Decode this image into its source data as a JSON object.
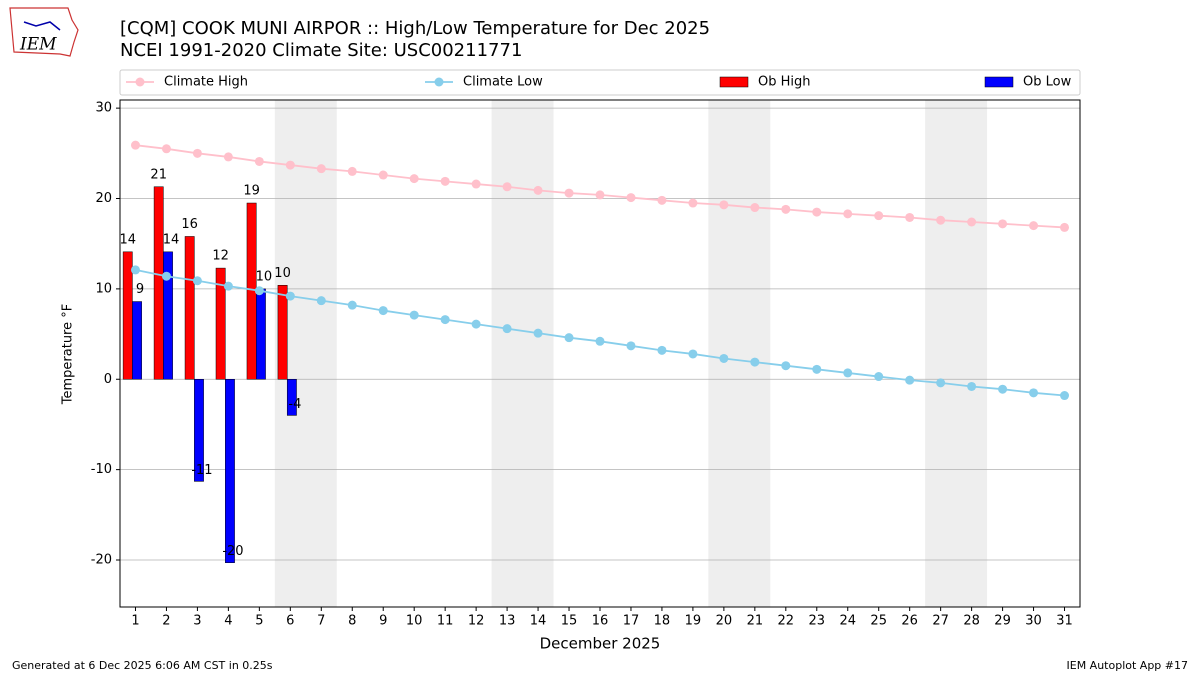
{
  "chart_data": {
    "type": "bar-line",
    "title": "[CQM] COOK MUNI AIRPOR :: High/Low Temperature for Dec 2025",
    "subtitle": "NCEI 1991-2020 Climate Site: USC00211771",
    "logo": "IEM",
    "xlabel": "December 2025",
    "ylabel": "Temperature °F",
    "x": [
      1,
      2,
      3,
      4,
      5,
      6,
      7,
      8,
      9,
      10,
      11,
      12,
      13,
      14,
      15,
      16,
      17,
      18,
      19,
      20,
      21,
      22,
      23,
      24,
      25,
      26,
      27,
      28,
      29,
      30,
      31
    ],
    "xlim": [
      0.5,
      31.5
    ],
    "xticks": [
      1,
      2,
      3,
      4,
      5,
      6,
      7,
      8,
      9,
      10,
      11,
      12,
      13,
      14,
      15,
      16,
      17,
      18,
      19,
      20,
      21,
      22,
      23,
      24,
      25,
      26,
      27,
      28,
      29,
      30,
      31
    ],
    "ylim": [
      -25.2,
      30.9
    ],
    "yticks": [
      -20,
      -10,
      0,
      10,
      20,
      30
    ],
    "grid": true,
    "legend": "top",
    "shaded_ranges": [
      [
        5.5,
        7.5
      ],
      [
        12.5,
        14.5
      ],
      [
        19.5,
        21.5
      ],
      [
        26.5,
        28.5
      ]
    ],
    "shade_color": "#eeeeee",
    "series": [
      {
        "name": "Climate High",
        "kind": "line",
        "color": "#ffc0cb",
        "values": [
          25.9,
          25.5,
          25.0,
          24.6,
          24.1,
          23.7,
          23.3,
          23.0,
          22.6,
          22.2,
          21.9,
          21.6,
          21.3,
          20.9,
          20.6,
          20.4,
          20.1,
          19.8,
          19.5,
          19.3,
          19.0,
          18.8,
          18.5,
          18.3,
          18.1,
          17.9,
          17.6,
          17.4,
          17.2,
          17.0,
          16.8
        ]
      },
      {
        "name": "Climate Low",
        "kind": "line",
        "color": "#87ceeb",
        "values": [
          12.1,
          11.4,
          10.9,
          10.3,
          9.8,
          9.2,
          8.7,
          8.2,
          7.6,
          7.1,
          6.6,
          6.1,
          5.6,
          5.1,
          4.6,
          4.2,
          3.7,
          3.2,
          2.8,
          2.3,
          1.9,
          1.5,
          1.1,
          0.7,
          0.3,
          -0.1,
          -0.4,
          -0.8,
          -1.1,
          -1.5,
          -1.8
        ]
      },
      {
        "name": "Ob High",
        "kind": "bar",
        "color": "#ff0000",
        "values": [
          14.1,
          21.3,
          15.8,
          12.3,
          19.5,
          10.4,
          null,
          null,
          null,
          null,
          null,
          null,
          null,
          null,
          null,
          null,
          null,
          null,
          null,
          null,
          null,
          null,
          null,
          null,
          null,
          null,
          null,
          null,
          null,
          null,
          null
        ],
        "value_labels": [
          "14",
          "21",
          "16",
          "12",
          "19",
          "10",
          null,
          null,
          null,
          null,
          null,
          null,
          null,
          null,
          null,
          null,
          null,
          null,
          null,
          null,
          null,
          null,
          null,
          null,
          null,
          null,
          null,
          null,
          null,
          null,
          null
        ]
      },
      {
        "name": "Ob Low",
        "kind": "bar",
        "color": "#0000ff",
        "values": [
          8.6,
          14.1,
          -11.3,
          -20.3,
          10.0,
          -4.0,
          null,
          null,
          null,
          null,
          null,
          null,
          null,
          null,
          null,
          null,
          null,
          null,
          null,
          null,
          null,
          null,
          null,
          null,
          null,
          null,
          null,
          null,
          null,
          null,
          null
        ],
        "value_labels": [
          "9",
          "14",
          "-11",
          "-20",
          "10",
          "-4",
          null,
          null,
          null,
          null,
          null,
          null,
          null,
          null,
          null,
          null,
          null,
          null,
          null,
          null,
          null,
          null,
          null,
          null,
          null,
          null,
          null,
          null,
          null,
          null,
          null
        ]
      }
    ],
    "footer_left": "Generated at 6 Dec 2025 6:06 AM CST in 0.25s",
    "footer_right": "IEM Autoplot App #17"
  }
}
